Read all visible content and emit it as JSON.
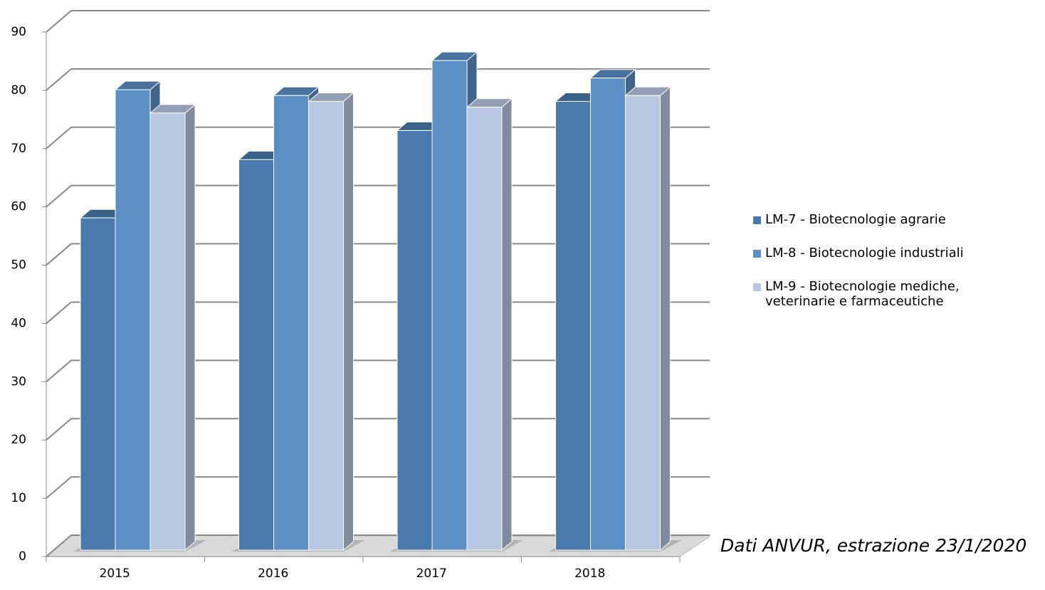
{
  "chart_data": {
    "type": "bar3d",
    "categories": [
      "2015",
      "2016",
      "2017",
      "2018"
    ],
    "series": [
      {
        "name": "LM-7 - Biotecnologie agrarie",
        "color": "#4a7aab",
        "values": [
          57,
          67,
          72,
          77
        ]
      },
      {
        "name": "LM-8 - Biotecnologie industriali",
        "color": "#5b8fc5",
        "values": [
          79,
          78,
          84,
          81
        ]
      },
      {
        "name": "LM-9 - Biotecnologie mediche, veterinarie e farmaceutiche",
        "color": "#b8c7e2",
        "values": [
          75,
          77,
          76,
          78
        ]
      }
    ],
    "ylim": [
      0,
      90
    ],
    "yticks": [
      0,
      10,
      20,
      30,
      40,
      50,
      60,
      70,
      80,
      90
    ],
    "grid": true,
    "legend": "right",
    "annotation": "Dati ANVUR, estrazione 23/1/2020"
  }
}
